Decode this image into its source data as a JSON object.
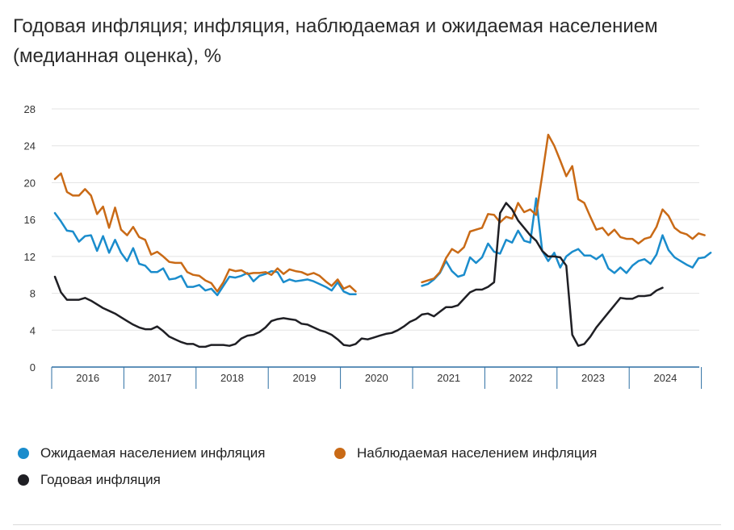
{
  "title": "Годовая инфляция; инфляция, наблюдаемая и ожидаемая населением (медианная оценка), %",
  "chart_data": {
    "type": "line",
    "title": "Годовая инфляция; инфляция, наблюдаемая и ожидаемая населением (медианная оценка), %",
    "xlabel": "",
    "ylabel": "%",
    "ylim": [
      0,
      28
    ],
    "yticks": [
      "0",
      "4",
      "8",
      "12",
      "16",
      "20",
      "24",
      "28"
    ],
    "year_labels": [
      "2016",
      "2017",
      "2018",
      "2019",
      "2020",
      "2021",
      "2022",
      "2023",
      "2024"
    ],
    "x_start": "2016-01",
    "x_unit": "month index from 2016-01",
    "series": [
      {
        "name": "Ожидаемая населением инфляция",
        "color": "#1a8ccc",
        "x_start": 0,
        "values": [
          16.7,
          15.8,
          14.8,
          14.7,
          13.6,
          14.2,
          14.3,
          12.6,
          14.2,
          12.4,
          13.8,
          12.4,
          11.5,
          12.9,
          11.2,
          11.0,
          10.3,
          10.3,
          10.7,
          9.5,
          9.6,
          9.9,
          8.7,
          8.7,
          8.9,
          8.3,
          8.5,
          7.8,
          8.8,
          9.8,
          9.7,
          9.9,
          10.2,
          9.3,
          9.9,
          10.1,
          10.4,
          10.3,
          9.2,
          9.5,
          9.3,
          9.4,
          9.5,
          9.3,
          9.0,
          8.7,
          8.3,
          9.2,
          8.2,
          7.9,
          7.9,
          null,
          null,
          null,
          null,
          null,
          null,
          null,
          null,
          null,
          null,
          8.8,
          9.0,
          9.5,
          10.2,
          11.5,
          10.4,
          9.8,
          10.0,
          11.9,
          11.3,
          11.9,
          13.4,
          12.5,
          12.3,
          13.8,
          13.5,
          14.8,
          13.7,
          13.5,
          18.3,
          12.6,
          11.5,
          12.4,
          10.8,
          12.0,
          12.5,
          12.8,
          12.1,
          12.1,
          11.7,
          12.2,
          10.7,
          10.2,
          10.8,
          10.2,
          11.0,
          11.5,
          11.7,
          11.2,
          12.2,
          14.3,
          12.7,
          11.9,
          11.5,
          11.1,
          10.8,
          11.8,
          11.9,
          12.4
        ]
      },
      {
        "name": "Наблюдаемая населением инфляция",
        "color": "#c96a16",
        "x_start": 0,
        "values": [
          20.4,
          21.0,
          19.0,
          18.6,
          18.6,
          19.3,
          18.6,
          16.6,
          17.4,
          15.1,
          17.3,
          14.9,
          14.3,
          15.2,
          14.1,
          13.8,
          12.2,
          12.5,
          12.0,
          11.4,
          11.3,
          11.3,
          10.3,
          10.0,
          9.9,
          9.4,
          9.1,
          8.2,
          9.2,
          10.6,
          10.4,
          10.5,
          10.1,
          10.2,
          10.2,
          10.3,
          10.0,
          10.7,
          10.1,
          10.6,
          10.4,
          10.3,
          10.0,
          10.2,
          9.9,
          9.3,
          8.8,
          9.5,
          8.5,
          8.8,
          8.2,
          null,
          null,
          null,
          null,
          null,
          null,
          null,
          null,
          null,
          null,
          9.2,
          9.4,
          9.6,
          10.3,
          11.8,
          12.8,
          12.4,
          13.0,
          14.7,
          14.9,
          15.1,
          16.6,
          16.5,
          15.7,
          16.3,
          16.1,
          17.8,
          16.8,
          17.1,
          16.5,
          20.8,
          25.2,
          24.0,
          22.4,
          20.7,
          21.8,
          18.2,
          17.8,
          16.3,
          14.9,
          15.1,
          14.3,
          14.9,
          14.1,
          13.9,
          13.9,
          13.4,
          13.9,
          14.1,
          15.2,
          17.1,
          16.4,
          15.1,
          14.6,
          14.4,
          13.9,
          14.5,
          14.3
        ]
      },
      {
        "name": "Годовая инфляция",
        "color": "#1f1f24",
        "x_start": 0,
        "values": [
          9.8,
          8.1,
          7.3,
          7.3,
          7.3,
          7.5,
          7.2,
          6.8,
          6.4,
          6.1,
          5.8,
          5.4,
          5.0,
          4.6,
          4.3,
          4.1,
          4.1,
          4.4,
          3.9,
          3.3,
          3.0,
          2.7,
          2.5,
          2.5,
          2.2,
          2.2,
          2.4,
          2.4,
          2.4,
          2.3,
          2.5,
          3.1,
          3.4,
          3.5,
          3.8,
          4.3,
          5.0,
          5.2,
          5.3,
          5.2,
          5.1,
          4.7,
          4.6,
          4.3,
          4.0,
          3.8,
          3.5,
          3.0,
          2.4,
          2.3,
          2.5,
          3.1,
          3.0,
          3.2,
          3.4,
          3.6,
          3.7,
          4.0,
          4.4,
          4.9,
          5.2,
          5.7,
          5.8,
          5.5,
          6.0,
          6.5,
          6.5,
          6.7,
          7.4,
          8.1,
          8.4,
          8.4,
          8.7,
          9.2,
          16.7,
          17.8,
          17.1,
          15.9,
          15.1,
          14.3,
          13.7,
          12.6,
          12.0,
          12.0,
          11.9,
          11.0,
          3.5,
          2.3,
          2.5,
          3.3,
          4.3,
          5.1,
          5.9,
          6.7,
          7.5,
          7.4,
          7.4,
          7.7,
          7.7,
          7.8,
          8.3,
          8.6
        ]
      }
    ]
  },
  "legend": {
    "items": [
      {
        "label": "Ожидаемая населением инфляция",
        "color": "#1a8ccc"
      },
      {
        "label": "Наблюдаемая населением инфляция",
        "color": "#c96a16"
      },
      {
        "label": "Годовая инфляция",
        "color": "#1f1f24"
      }
    ]
  }
}
